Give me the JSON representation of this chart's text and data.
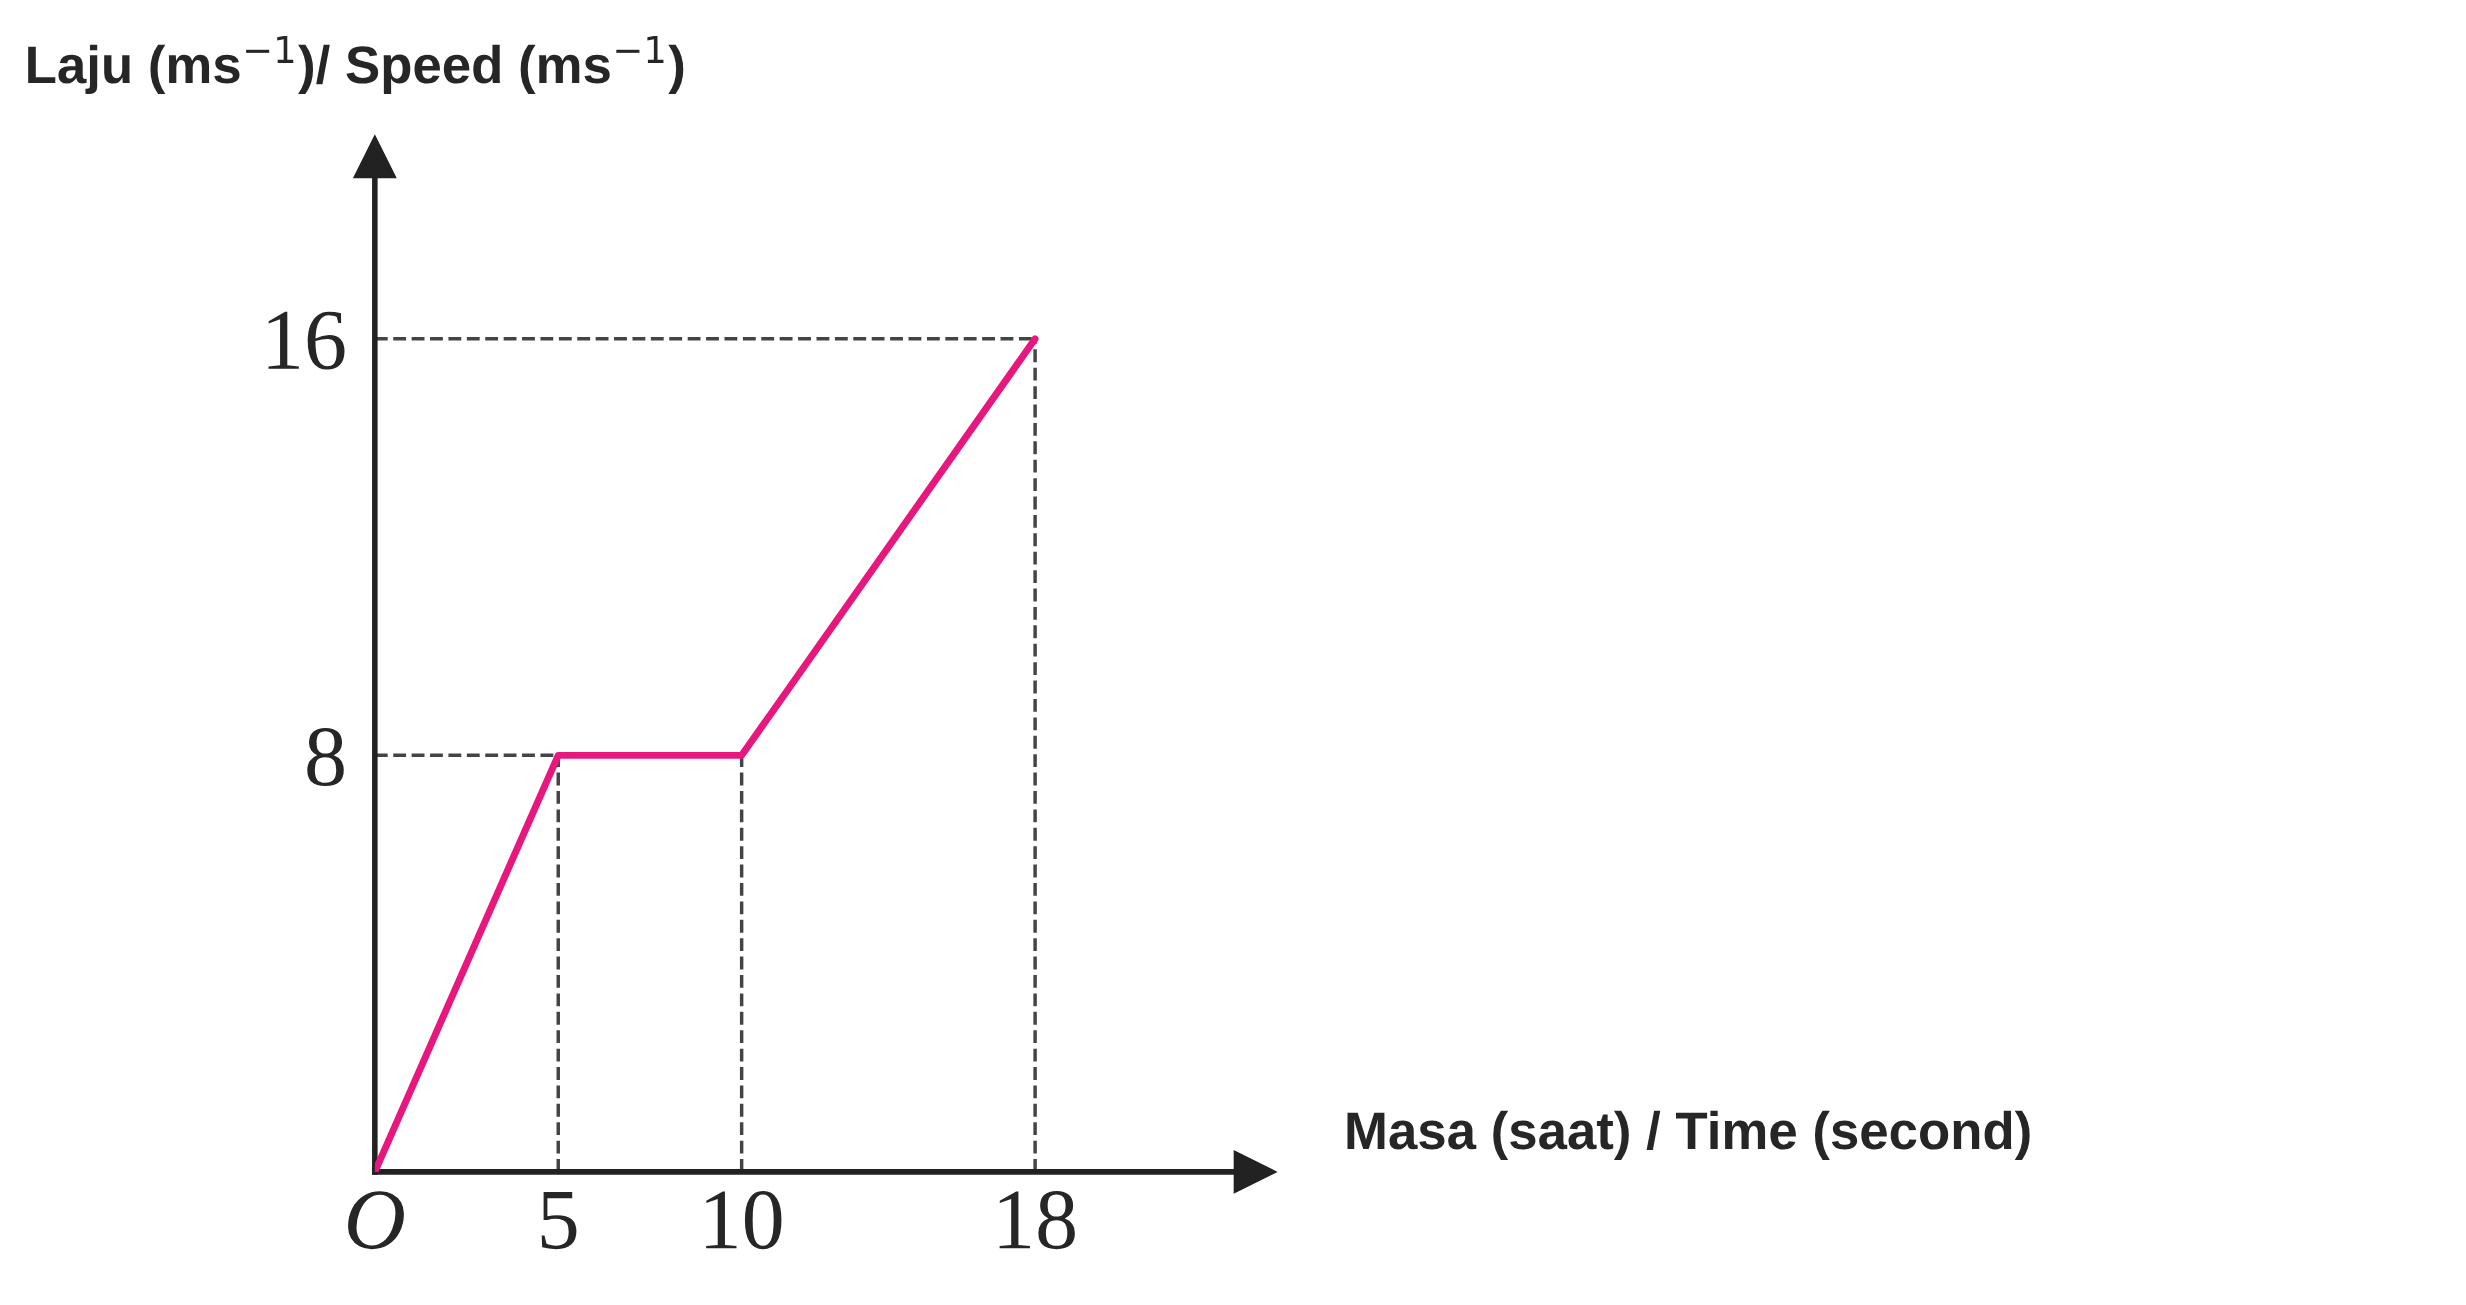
{
  "chart_data": {
    "type": "line",
    "ylabel": "Laju (ms$^{−1}$)/ Speed (ms$^{−1}$)",
    "xlabel": "Masa (saat) / Time (second)",
    "x": [
      0,
      5,
      10,
      18
    ],
    "series": [
      {
        "color": "#e8177d",
        "values": [
          0,
          8,
          8,
          16
        ]
      }
    ],
    "xlim": [
      0,
      24
    ],
    "ylim": [
      0,
      19.5
    ],
    "xticks": [
      {
        "value": 0,
        "label": "O"
      },
      5,
      10,
      18
    ],
    "yticks": [
      8,
      16
    ],
    "ref_lines": [
      {
        "axis": "y",
        "value": 8,
        "line_style": "dashed",
        "color": "#444444"
      },
      {
        "axis": "y",
        "value": 16,
        "line_style": "dashed",
        "color": "#444444"
      },
      {
        "axis": "x",
        "value": 5,
        "line_style": "dashed",
        "color": "#444444"
      },
      {
        "axis": "x",
        "value": 10,
        "line_style": "dashed",
        "color": "#444444"
      },
      {
        "axis": "x",
        "value": 18,
        "line_style": "dashed",
        "color": "#444444"
      }
    ],
    "grid": false,
    "marker": "none",
    "line_style": "solid"
  }
}
